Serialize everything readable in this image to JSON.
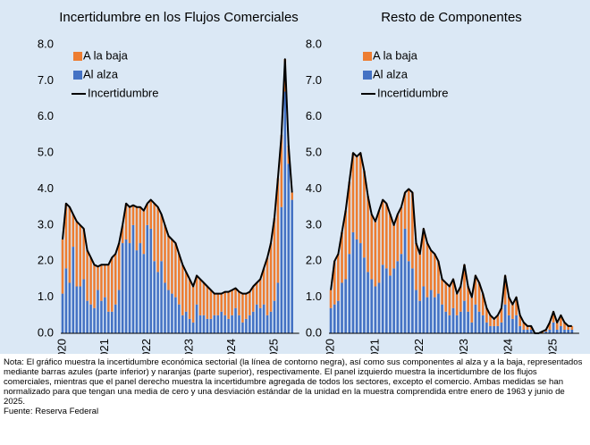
{
  "chart_data": [
    {
      "type": "bar",
      "stacked": true,
      "title": "Incertidumbre en los Flujos Comerciales",
      "categories": [
        "2020",
        null,
        null,
        null,
        null,
        null,
        null,
        null,
        null,
        null,
        null,
        null,
        "2021",
        null,
        null,
        null,
        null,
        null,
        null,
        null,
        null,
        null,
        null,
        null,
        "2022",
        null,
        null,
        null,
        null,
        null,
        null,
        null,
        null,
        null,
        null,
        null,
        "2023",
        null,
        null,
        null,
        null,
        null,
        null,
        null,
        null,
        null,
        null,
        null,
        "2024",
        null,
        null,
        null,
        null,
        null,
        null,
        null,
        null,
        null,
        null,
        null,
        "2025",
        null,
        null,
        null,
        null,
        null
      ],
      "ylim": [
        0,
        8
      ],
      "yticks": [
        {
          "value": 0,
          "label": "0.0"
        },
        {
          "value": 1,
          "label": "1.0"
        },
        {
          "value": 2,
          "label": "2.0"
        },
        {
          "value": 3,
          "label": "3.0"
        },
        {
          "value": 4,
          "label": "4.0"
        },
        {
          "value": 5,
          "label": "5.0"
        },
        {
          "value": 6,
          "label": "6.0"
        },
        {
          "value": 7,
          "label": "7.0"
        },
        {
          "value": 8,
          "label": "8.0"
        }
      ],
      "series": [
        {
          "name": "A la baja",
          "color": "#ed7d31",
          "values": [
            1.5,
            1.8,
            2.1,
            0.9,
            1.8,
            1.7,
            1.4,
            1.4,
            1.3,
            1.2,
            0.65,
            1.0,
            0.9,
            1.3,
            1.5,
            1.4,
            1.3,
            0.5,
            1.0,
            1.0,
            0.55,
            1.2,
            1.0,
            1.2,
            0.6,
            0.8,
            1.6,
            1.8,
            1.3,
            1.6,
            1.5,
            1.5,
            1.5,
            1.4,
            1.4,
            1.1,
            1.1,
            1.0,
            0.8,
            1.0,
            0.9,
            0.9,
            0.8,
            0.6,
            0.6,
            0.5,
            0.65,
            0.75,
            0.7,
            0.55,
            0.65,
            0.8,
            0.7,
            0.65,
            0.7,
            0.6,
            0.8,
            1.0,
            1.6,
            1.9,
            2.3,
            2.9,
            2.0,
            0.9,
            0.5,
            0.2
          ]
        },
        {
          "name": "Al alza",
          "color": "#4472c4",
          "values": [
            1.1,
            1.8,
            1.4,
            2.4,
            1.3,
            1.3,
            1.5,
            0.9,
            0.8,
            0.7,
            1.2,
            0.9,
            1.0,
            0.6,
            0.6,
            0.8,
            1.2,
            2.5,
            2.6,
            2.5,
            3.0,
            2.3,
            2.5,
            2.2,
            3.0,
            2.9,
            2.0,
            1.7,
            2.0,
            1.4,
            1.2,
            1.1,
            1.0,
            0.8,
            0.5,
            0.6,
            0.4,
            0.3,
            0.8,
            0.5,
            0.5,
            0.4,
            0.4,
            0.5,
            0.5,
            0.6,
            0.5,
            0.4,
            0.5,
            0.7,
            0.5,
            0.3,
            0.4,
            0.5,
            0.6,
            0.8,
            0.7,
            0.8,
            0.5,
            0.6,
            0.9,
            1.4,
            3.5,
            6.7,
            4.7,
            3.7
          ]
        },
        {
          "name": "Incertidumbre",
          "color": "#000000",
          "type": "line",
          "values": [
            2.6,
            3.6,
            3.5,
            3.3,
            3.1,
            3.0,
            2.9,
            2.3,
            2.1,
            1.9,
            1.85,
            1.9,
            1.9,
            1.9,
            2.1,
            2.2,
            2.5,
            3.0,
            3.6,
            3.5,
            3.55,
            3.5,
            3.5,
            3.4,
            3.6,
            3.7,
            3.6,
            3.5,
            3.3,
            3.0,
            2.7,
            2.6,
            2.5,
            2.2,
            1.9,
            1.7,
            1.5,
            1.3,
            1.6,
            1.5,
            1.4,
            1.3,
            1.2,
            1.1,
            1.1,
            1.1,
            1.15,
            1.15,
            1.2,
            1.25,
            1.15,
            1.1,
            1.1,
            1.15,
            1.3,
            1.4,
            1.5,
            1.8,
            2.1,
            2.5,
            3.2,
            4.3,
            5.5,
            7.6,
            5.2,
            3.9
          ]
        }
      ]
    },
    {
      "type": "bar",
      "stacked": true,
      "title": "Resto de Componentes",
      "categories": [
        "2020",
        null,
        null,
        null,
        null,
        null,
        null,
        null,
        null,
        null,
        null,
        null,
        "2021",
        null,
        null,
        null,
        null,
        null,
        null,
        null,
        null,
        null,
        null,
        null,
        "2022",
        null,
        null,
        null,
        null,
        null,
        null,
        null,
        null,
        null,
        null,
        null,
        "2023",
        null,
        null,
        null,
        null,
        null,
        null,
        null,
        null,
        null,
        null,
        null,
        "2024",
        null,
        null,
        null,
        null,
        null,
        null,
        null,
        null,
        null,
        null,
        null,
        "2025",
        null,
        null,
        null,
        null,
        null
      ],
      "ylim": [
        0,
        8
      ],
      "yticks": [
        {
          "value": 0,
          "label": "0.0"
        },
        {
          "value": 1,
          "label": "1.0"
        },
        {
          "value": 2,
          "label": "2.0"
        },
        {
          "value": 3,
          "label": "3.0"
        },
        {
          "value": 4,
          "label": "4.0"
        },
        {
          "value": 5,
          "label": "5.0"
        },
        {
          "value": 6,
          "label": "6.0"
        },
        {
          "value": 7,
          "label": "7.0"
        },
        {
          "value": 8,
          "label": "8.0"
        }
      ],
      "series": [
        {
          "name": "A la baja",
          "color": "#ed7d31",
          "values": [
            0.5,
            1.2,
            1.3,
            1.4,
            1.9,
            2.0,
            2.2,
            2.3,
            2.5,
            2.4,
            2.1,
            1.8,
            1.8,
            2.0,
            1.8,
            1.8,
            1.7,
            1.2,
            1.3,
            1.3,
            1.0,
            2.0,
            2.1,
            1.3,
            1.3,
            1.6,
            1.5,
            1.1,
            1.2,
            0.9,
            0.7,
            0.8,
            0.8,
            0.8,
            0.6,
            0.7,
            1.0,
            0.7,
            0.7,
            0.8,
            0.8,
            0.6,
            0.4,
            0.3,
            0.2,
            0.3,
            0.4,
            0.8,
            0.5,
            0.4,
            0.5,
            0.3,
            0.2,
            0.1,
            0.1,
            0.0,
            0.0,
            0.05,
            0.05,
            0.2,
            0.3,
            0.2,
            0.3,
            0.2,
            0.1,
            0.1
          ]
        },
        {
          "name": "Al alza",
          "color": "#4472c4",
          "values": [
            0.7,
            0.8,
            0.9,
            1.4,
            1.5,
            2.2,
            2.8,
            2.6,
            2.5,
            2.1,
            1.7,
            1.5,
            1.3,
            1.4,
            1.9,
            1.8,
            1.6,
            1.8,
            2.0,
            2.2,
            2.9,
            2.0,
            1.8,
            1.2,
            0.9,
            1.3,
            1.0,
            1.2,
            1.0,
            1.1,
            0.8,
            0.6,
            0.5,
            0.7,
            0.5,
            0.6,
            0.9,
            0.6,
            0.3,
            0.8,
            0.6,
            0.5,
            0.3,
            0.2,
            0.2,
            0.2,
            0.3,
            0.8,
            0.5,
            0.4,
            0.5,
            0.2,
            0.1,
            0.1,
            0.1,
            0.0,
            0.0,
            0.0,
            0.05,
            0.1,
            0.3,
            0.1,
            0.2,
            0.1,
            0.1,
            0.1
          ]
        },
        {
          "name": "Incertidumbre",
          "color": "#000000",
          "type": "line",
          "values": [
            1.2,
            2.0,
            2.2,
            2.8,
            3.4,
            4.2,
            5.0,
            4.9,
            5.0,
            4.5,
            3.8,
            3.3,
            3.1,
            3.4,
            3.7,
            3.6,
            3.3,
            3.0,
            3.3,
            3.5,
            3.9,
            4.0,
            3.9,
            2.5,
            2.2,
            2.9,
            2.5,
            2.3,
            2.2,
            2.0,
            1.5,
            1.4,
            1.3,
            1.5,
            1.1,
            1.3,
            1.9,
            1.3,
            1.0,
            1.6,
            1.4,
            1.1,
            0.7,
            0.5,
            0.4,
            0.5,
            0.7,
            1.6,
            1.0,
            0.8,
            1.0,
            0.5,
            0.3,
            0.2,
            0.2,
            0.0,
            0.0,
            0.05,
            0.1,
            0.3,
            0.6,
            0.3,
            0.5,
            0.3,
            0.2,
            0.2
          ]
        }
      ]
    }
  ],
  "note": "Nota: El gráfico muestra la incertidumbre económica sectorial (la línea de contorno negra), así como sus componentes al alza y a la baja, representados mediante barras azules (parte inferior) y naranjas (parte superior), respectivamente. El panel izquierdo muestra la incertidumbre de los flujos comerciales, mientras que el panel derecho muestra la incertidumbre agregada de todos los sectores, excepto el comercio. Ambas medidas se han normalizado para que tengan una media de cero y una desviación estándar de la unidad en la muestra comprendida entre enero de 1963 y junio de 2025.",
  "source": "Fuente: Reserva Federal"
}
